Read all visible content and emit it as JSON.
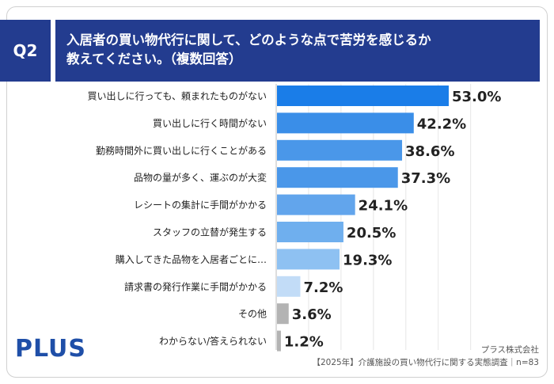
{
  "question": {
    "badge": "Q2",
    "line1": "入居者の買い物代行に関して、どのような点で苦労を感じるか",
    "line2": "教えてください。（複数回答）"
  },
  "chart_data": {
    "type": "bar",
    "orientation": "horizontal",
    "categories": [
      "買い出しに行っても、頼まれたものがない",
      "買い出しに行く時間がない",
      "勤務時間外に買い出しに行くことがある",
      "品物の量が多く、運ぶのが大変",
      "レシートの集計に手間がかかる",
      "スタッフの立替が発生する",
      "購入してきた品物を入居者ごとに…",
      "請求書の発行作業に手間がかかる",
      "その他",
      "わからない/答えられない"
    ],
    "values": [
      53.0,
      42.2,
      38.6,
      37.3,
      24.1,
      20.5,
      19.3,
      7.2,
      3.6,
      1.2
    ],
    "value_labels": [
      "53.0%",
      "42.2%",
      "38.6%",
      "37.3%",
      "24.1%",
      "20.5%",
      "19.3%",
      "7.2%",
      "3.6%",
      "1.2%"
    ],
    "bar_colors": [
      "#1a7de8",
      "#3a8ee8",
      "#4a97e9",
      "#4a97e9",
      "#62a5ec",
      "#6fafee",
      "#8ec1f2",
      "#c2dcf7",
      "#b3b3b3",
      "#b3b3b3"
    ],
    "grid": true
  },
  "footer": {
    "logo": "PLUS",
    "company": "プラス株式会社",
    "source": "【2025年】介護施設の買い物代行に関する実態調査｜n=83"
  },
  "colors": {
    "header_bg": "#233c8f",
    "logo": "#1f4fa8"
  }
}
